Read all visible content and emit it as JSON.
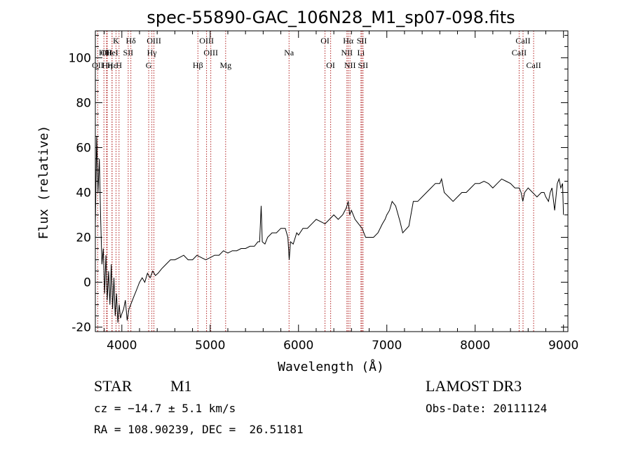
{
  "chart_data": {
    "type": "line",
    "title": "spec-55890-GAC_106N28_M1_sp07-098.fits",
    "xlabel": "Wavelength (Å)",
    "ylabel": "Flux (relative)",
    "xlim": [
      3700,
      9050
    ],
    "ylim": [
      -22,
      112
    ],
    "xticks": [
      4000,
      5000,
      6000,
      7000,
      8000,
      9000
    ],
    "yticks": [
      -20,
      0,
      20,
      40,
      60,
      80,
      100
    ],
    "series": [
      {
        "name": "spectrum",
        "color": "#000000",
        "x": [
          3700,
          3715,
          3730,
          3745,
          3760,
          3775,
          3790,
          3805,
          3820,
          3835,
          3850,
          3865,
          3880,
          3895,
          3910,
          3925,
          3940,
          3955,
          3970,
          3985,
          4000,
          4020,
          4040,
          4060,
          4080,
          4100,
          4120,
          4140,
          4160,
          4180,
          4200,
          4230,
          4260,
          4290,
          4320,
          4350,
          4380,
          4410,
          4450,
          4500,
          4550,
          4600,
          4650,
          4700,
          4750,
          4800,
          4850,
          4900,
          4950,
          5000,
          5050,
          5100,
          5150,
          5200,
          5250,
          5300,
          5350,
          5400,
          5450,
          5500,
          5540,
          5560,
          5577,
          5590,
          5620,
          5650,
          5700,
          5750,
          5800,
          5850,
          5880,
          5895,
          5910,
          5940,
          5980,
          6000,
          6050,
          6100,
          6150,
          6200,
          6250,
          6300,
          6350,
          6400,
          6450,
          6500,
          6540,
          6563,
          6580,
          6600,
          6640,
          6680,
          6720,
          6760,
          6800,
          6850,
          6900,
          6950,
          6980,
          7000,
          7030,
          7060,
          7100,
          7150,
          7180,
          7250,
          7300,
          7350,
          7400,
          7450,
          7500,
          7550,
          7600,
          7620,
          7650,
          7700,
          7750,
          7800,
          7850,
          7900,
          7950,
          8000,
          8050,
          8100,
          8150,
          8200,
          8250,
          8300,
          8350,
          8400,
          8450,
          8480,
          8500,
          8520,
          8540,
          8560,
          8600,
          8650,
          8700,
          8750,
          8780,
          8800,
          8830,
          8850,
          8870,
          8900,
          8930,
          8950,
          8970,
          8990,
          9000
        ],
        "y": [
          25,
          65,
          40,
          55,
          28,
          8,
          15,
          -5,
          12,
          -8,
          5,
          -10,
          8,
          -12,
          2,
          -15,
          -5,
          -18,
          -10,
          -16,
          -14,
          -12,
          -8,
          -17,
          -12,
          -10,
          -8,
          -6,
          -4,
          -2,
          0,
          2,
          0,
          4,
          2,
          5,
          3,
          4,
          6,
          8,
          10,
          10,
          11,
          12,
          10,
          10,
          12,
          11,
          10,
          11,
          12,
          12,
          14,
          13,
          14,
          14,
          15,
          15,
          16,
          16,
          18,
          18,
          34,
          18,
          17,
          20,
          22,
          22,
          24,
          24,
          20,
          10,
          18,
          17,
          22,
          21,
          24,
          24,
          26,
          28,
          27,
          26,
          28,
          30,
          28,
          30,
          33,
          36,
          30,
          32,
          28,
          26,
          24,
          20,
          20,
          20,
          22,
          26,
          28,
          30,
          32,
          36,
          34,
          27,
          22,
          25,
          36,
          36,
          38,
          40,
          42,
          44,
          44,
          46,
          40,
          38,
          36,
          38,
          40,
          40,
          42,
          44,
          44,
          45,
          44,
          42,
          44,
          46,
          45,
          44,
          42,
          42,
          42,
          40,
          36,
          40,
          42,
          40,
          38,
          40,
          40,
          38,
          36,
          40,
          42,
          32,
          44,
          46,
          42,
          44,
          30
        ]
      }
    ],
    "lines": [
      {
        "label": "OII",
        "x": 3727,
        "row": 2
      },
      {
        "label": "Hθ",
        "x": 3797,
        "row": 1
      },
      {
        "label": "OII",
        "x": 3826,
        "row": 1
      },
      {
        "label": "Hη",
        "x": 3835,
        "row": 2
      },
      {
        "label": "HeI",
        "x": 3889,
        "row": 1
      },
      {
        "label": "Hε",
        "x": 3889,
        "row": 2
      },
      {
        "label": "K",
        "x": 3934,
        "row": 0
      },
      {
        "label": "SII",
        "x": 4072,
        "row": 1
      },
      {
        "label": "H",
        "x": 3968,
        "row": 2
      },
      {
        "label": "Hδ",
        "x": 4102,
        "row": 0
      },
      {
        "label": "OIII",
        "x": 4363,
        "row": 0
      },
      {
        "label": "Hγ",
        "x": 4340,
        "row": 1
      },
      {
        "label": "G",
        "x": 4304,
        "row": 2
      },
      {
        "label": "Hβ",
        "x": 4861,
        "row": 2
      },
      {
        "label": "OIII",
        "x": 4959,
        "row": 0
      },
      {
        "label": "OIII",
        "x": 5007,
        "row": 1
      },
      {
        "label": "Mg",
        "x": 5175,
        "row": 2
      },
      {
        "label": "Na",
        "x": 5893,
        "row": 1
      },
      {
        "label": "OI",
        "x": 6300,
        "row": 0
      },
      {
        "label": "OI",
        "x": 6364,
        "row": 2
      },
      {
        "label": "Hα",
        "x": 6563,
        "row": 0
      },
      {
        "label": "NII",
        "x": 6548,
        "row": 1
      },
      {
        "label": "NII",
        "x": 6583,
        "row": 2
      },
      {
        "label": "SII",
        "x": 6717,
        "row": 0
      },
      {
        "label": "Li",
        "x": 6707,
        "row": 1
      },
      {
        "label": "SII",
        "x": 6731,
        "row": 2
      },
      {
        "label": "CaII",
        "x": 8542,
        "row": 0
      },
      {
        "label": "CaII",
        "x": 8498,
        "row": 1
      },
      {
        "label": "CaII",
        "x": 8662,
        "row": 2
      }
    ]
  },
  "footer": {
    "object_class": "STAR",
    "subclass": "M1",
    "survey": "LAMOST DR3",
    "redshift": "cz = −14.7 ± 5.1 km/s",
    "obs_date": "Obs-Date: 20111124",
    "coords": "RA = 108.90239, DEC =  26.51181"
  }
}
